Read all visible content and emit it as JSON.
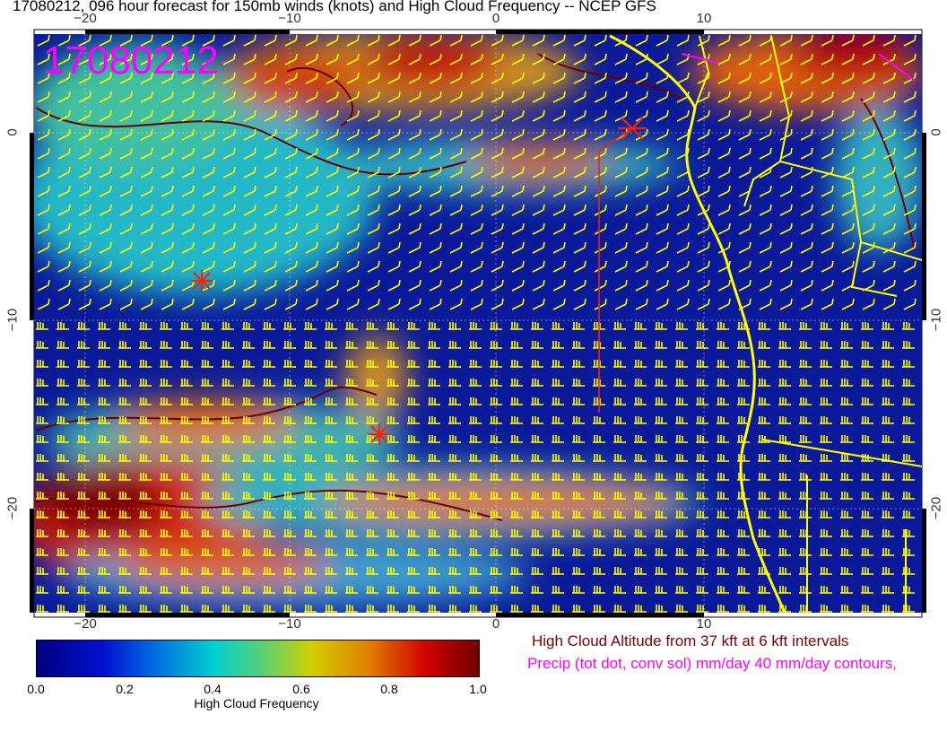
{
  "title": "17080212, 096 hour forecast for 150mb winds (knots) and High Cloud Frequency -- NCEP GFS",
  "map": {
    "date_stamp": "17080212",
    "lon_ticks": [
      "−20",
      "−10",
      "0",
      "10"
    ],
    "lat_ticks": [
      "0",
      "−10",
      "−20"
    ],
    "lon_range": [
      -22.5,
      20.5
    ],
    "lat_range": [
      -25.5,
      5.2
    ],
    "colors": {
      "wind_barbs": "#ffff00",
      "coastline": "#ffff00",
      "precip": "#ff00ff",
      "cloud_altitude": "#7a0000",
      "markers": "#ff2000"
    }
  },
  "colorbar": {
    "label": "High Cloud Frequency",
    "ticks": [
      "0.0",
      "0.2",
      "0.4",
      "0.6",
      "0.8",
      "1.0"
    ],
    "range": [
      0,
      1
    ]
  },
  "legend": {
    "cloud_altitude": "High Cloud Altitude from 37 kft at 6 kft intervals",
    "precip": "Precip (tot dot, conv sol) mm/day 40 mm/day contours,"
  }
}
